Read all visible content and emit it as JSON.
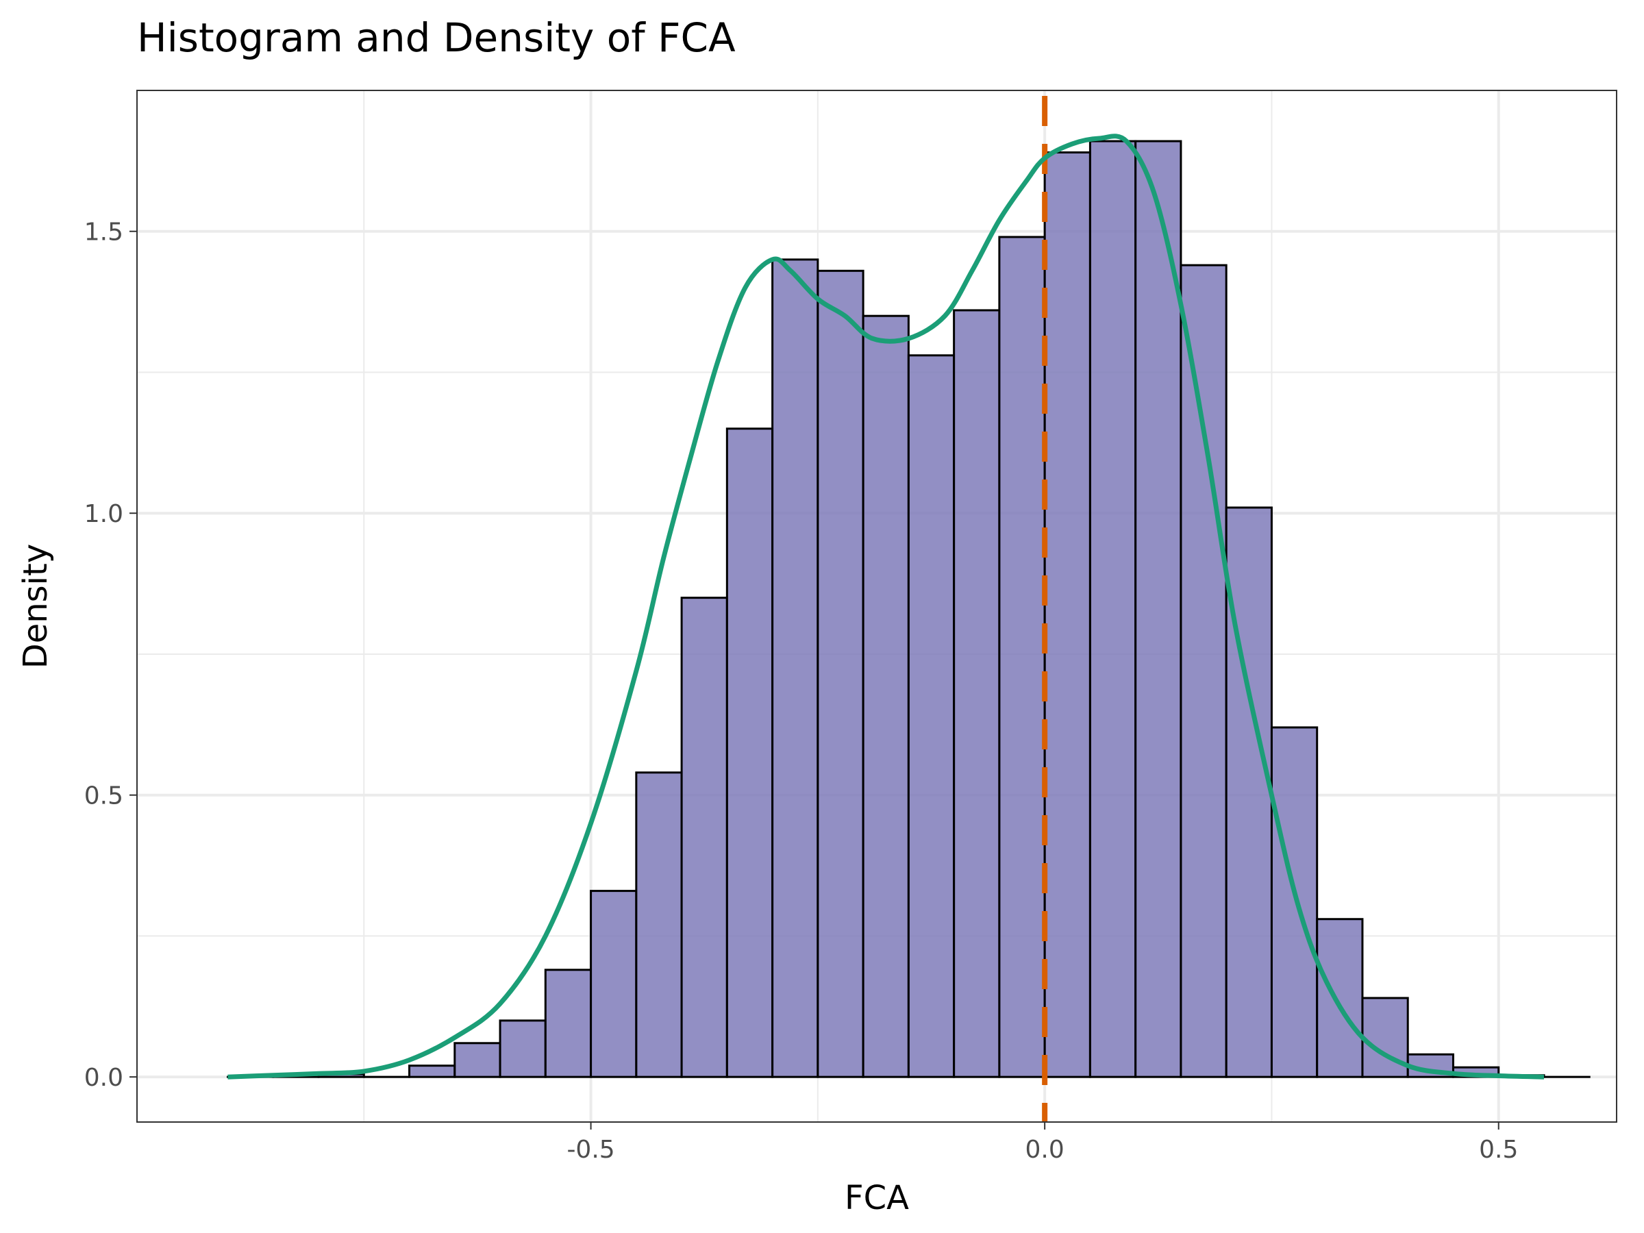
{
  "chart_data": {
    "type": "bar",
    "title": "Histogram and Density of FCA",
    "xlabel": "FCA",
    "ylabel": "Density",
    "xlim": [
      -1.0,
      0.63
    ],
    "ylim": [
      -0.08,
      1.75
    ],
    "grid": true,
    "x_ticks": [
      -0.5,
      0.0,
      0.5
    ],
    "x_tick_labels": [
      "-0.5",
      "0.0",
      "0.5"
    ],
    "y_ticks": [
      0.0,
      0.5,
      1.0,
      1.5
    ],
    "y_tick_labels": [
      "0.0",
      "0.5",
      "1.0",
      "1.5"
    ],
    "bin_width": 0.05,
    "bin_starts": [
      -0.9,
      -0.85,
      -0.8,
      -0.75,
      -0.7,
      -0.65,
      -0.6,
      -0.55,
      -0.5,
      -0.45,
      -0.4,
      -0.35,
      -0.3,
      -0.25,
      -0.2,
      -0.15,
      -0.1,
      -0.05,
      0.0,
      0.05,
      0.1,
      0.15,
      0.2,
      0.25,
      0.3,
      0.35,
      0.4,
      0.45,
      0.5,
      0.55
    ],
    "bin_values": [
      0.0,
      0.0,
      0.005,
      0.0,
      0.02,
      0.06,
      0.1,
      0.19,
      0.33,
      0.54,
      0.85,
      1.15,
      1.45,
      1.43,
      1.35,
      1.28,
      1.36,
      1.49,
      1.64,
      1.66,
      1.66,
      1.44,
      1.01,
      0.62,
      0.28,
      0.14,
      0.04,
      0.017,
      0.003,
      0.0
    ],
    "density_curve": {
      "x": [
        -0.9,
        -0.85,
        -0.8,
        -0.75,
        -0.7,
        -0.65,
        -0.6,
        -0.55,
        -0.5,
        -0.45,
        -0.42,
        -0.39,
        -0.36,
        -0.33,
        -0.3,
        -0.28,
        -0.25,
        -0.22,
        -0.19,
        -0.15,
        -0.11,
        -0.08,
        -0.05,
        -0.02,
        0.0,
        0.03,
        0.06,
        0.09,
        0.12,
        0.15,
        0.18,
        0.21,
        0.25,
        0.28,
        0.31,
        0.35,
        0.4,
        0.45,
        0.5,
        0.55
      ],
      "y": [
        0.0,
        0.003,
        0.006,
        0.01,
        0.03,
        0.07,
        0.13,
        0.25,
        0.45,
        0.72,
        0.92,
        1.1,
        1.27,
        1.4,
        1.45,
        1.43,
        1.38,
        1.35,
        1.31,
        1.31,
        1.35,
        1.43,
        1.52,
        1.59,
        1.63,
        1.655,
        1.665,
        1.66,
        1.57,
        1.37,
        1.1,
        0.8,
        0.5,
        0.3,
        0.17,
        0.07,
        0.02,
        0.006,
        0.002,
        0.0
      ]
    },
    "mean_line_x": 0.0,
    "colors": {
      "bar_fill": "#7f7bba",
      "bar_stroke": "#000000",
      "density": "#1b9e77",
      "mean_line": "#d95f02",
      "grid": "#ebebeb",
      "panel_border": "#333333"
    }
  }
}
